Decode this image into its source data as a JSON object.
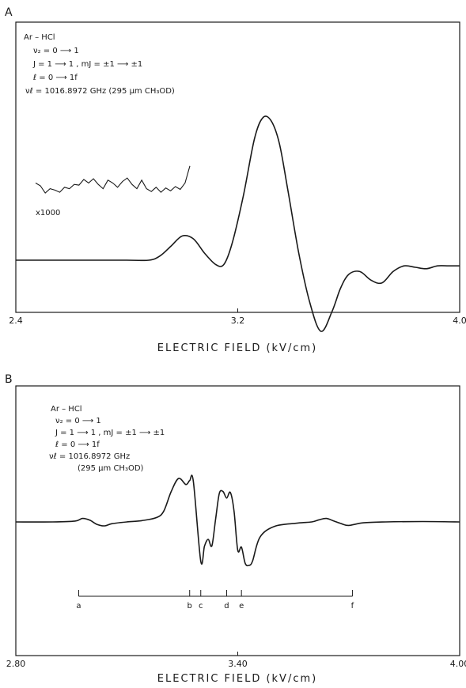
{
  "chart_data": [
    {
      "type": "line",
      "panel_label": "A",
      "title": "",
      "xlabel": "ELECTRIC FIELD (kV/cm)",
      "ylabel": "",
      "xlim": [
        2.4,
        4.0
      ],
      "x_ticks": [
        {
          "value": 2.4,
          "label": "2.4"
        },
        {
          "value": 3.2,
          "label": "3.2"
        },
        {
          "value": 4.0,
          "label": "4.0"
        }
      ],
      "annotation_lines": [
        "Ar – HCl",
        "ν₂ = 0 ⟶ 1",
        "J = 1 ⟶ 1 , mJ = ±1 ⟶ ±1",
        "ℓ = 0 ⟶ 1f",
        "νℓ = 1016.8972 GHz (295 μm CH₃OD)"
      ],
      "inset_label": "x1000",
      "series": [
        {
          "x": [
            2.4,
            2.6,
            2.8,
            2.88,
            2.92,
            2.96,
            3.0,
            3.04,
            3.08,
            3.12,
            3.15,
            3.18,
            3.22,
            3.26,
            3.29,
            3.32,
            3.35,
            3.38,
            3.42,
            3.46,
            3.5,
            3.54,
            3.57,
            3.6,
            3.64,
            3.68,
            3.72,
            3.76,
            3.8,
            3.84,
            3.88,
            3.92,
            3.96,
            4.0
          ],
          "y": [
            0.0,
            0.0,
            0.0,
            0.0,
            0.03,
            0.1,
            0.17,
            0.15,
            0.05,
            -0.03,
            -0.03,
            0.12,
            0.45,
            0.85,
            1.0,
            0.98,
            0.82,
            0.5,
            0.05,
            -0.3,
            -0.5,
            -0.36,
            -0.2,
            -0.1,
            -0.08,
            -0.14,
            -0.16,
            -0.08,
            -0.04,
            -0.05,
            -0.06,
            -0.04,
            -0.04,
            -0.04
          ]
        }
      ],
      "inset_series": {
        "x": [
          0,
          1,
          2,
          3,
          4,
          5,
          6,
          7,
          8,
          9,
          10,
          11,
          12,
          13,
          14,
          15,
          16,
          17,
          18,
          19,
          20,
          21,
          22,
          23,
          24,
          25,
          26,
          27,
          28,
          29,
          30,
          31,
          32
        ],
        "y": [
          0.2,
          0.0,
          -0.5,
          -0.2,
          -0.3,
          -0.45,
          -0.1,
          -0.2,
          0.1,
          0.05,
          0.45,
          0.2,
          0.5,
          0.1,
          -0.2,
          0.4,
          0.2,
          -0.1,
          0.3,
          0.55,
          0.1,
          -0.2,
          0.4,
          -0.2,
          -0.4,
          -0.1,
          -0.45,
          -0.15,
          -0.35,
          -0.05,
          -0.25,
          0.2,
          1.4
        ]
      }
    },
    {
      "type": "line",
      "panel_label": "B",
      "title": "",
      "xlabel": "ELECTRIC FIELD (kV/cm)",
      "ylabel": "",
      "xlim": [
        2.8,
        4.0
      ],
      "x_ticks": [
        {
          "value": 2.8,
          "label": "2.80"
        },
        {
          "value": 3.4,
          "label": "3.40"
        },
        {
          "value": 4.0,
          "label": "4.00"
        }
      ],
      "annotation_lines": [
        "Ar – HCl",
        "ν₂ = 0 ⟶ 1",
        "J = 1 ⟶ 1 , mJ = ±1 ⟶ ±1",
        "ℓ = 0 ⟶ 1f",
        "νℓ = 1016.8972 GHz",
        "(295 μm CH₃OD)"
      ],
      "markers": [
        {
          "label": "a",
          "x": 2.97
        },
        {
          "label": "b",
          "x": 3.27
        },
        {
          "label": "c",
          "x": 3.3
        },
        {
          "label": "d",
          "x": 3.37
        },
        {
          "label": "e",
          "x": 3.41
        },
        {
          "label": "f",
          "x": 3.71
        }
      ],
      "series": [
        {
          "x": [
            2.8,
            2.9,
            2.96,
            2.98,
            3.0,
            3.02,
            3.04,
            3.06,
            3.1,
            3.14,
            3.18,
            3.2,
            3.22,
            3.24,
            3.26,
            3.27,
            3.28,
            3.3,
            3.31,
            3.32,
            3.33,
            3.34,
            3.35,
            3.36,
            3.37,
            3.38,
            3.39,
            3.4,
            3.41,
            3.42,
            3.43,
            3.44,
            3.46,
            3.5,
            3.56,
            3.6,
            3.62,
            3.64,
            3.66,
            3.68,
            3.7,
            3.74,
            3.8,
            3.9,
            4.0
          ],
          "y": [
            0.0,
            0.0,
            0.02,
            0.08,
            0.04,
            -0.06,
            -0.09,
            -0.04,
            0.0,
            0.03,
            0.1,
            0.25,
            0.7,
            1.0,
            0.86,
            0.95,
            0.93,
            -0.9,
            -0.56,
            -0.4,
            -0.55,
            0.05,
            0.65,
            0.7,
            0.55,
            0.68,
            0.25,
            -0.65,
            -0.58,
            -0.95,
            -1.0,
            -0.9,
            -0.35,
            -0.1,
            -0.03,
            0.0,
            0.05,
            0.08,
            0.02,
            -0.04,
            -0.08,
            -0.02,
            0.0,
            0.01,
            0.0
          ]
        }
      ]
    }
  ]
}
